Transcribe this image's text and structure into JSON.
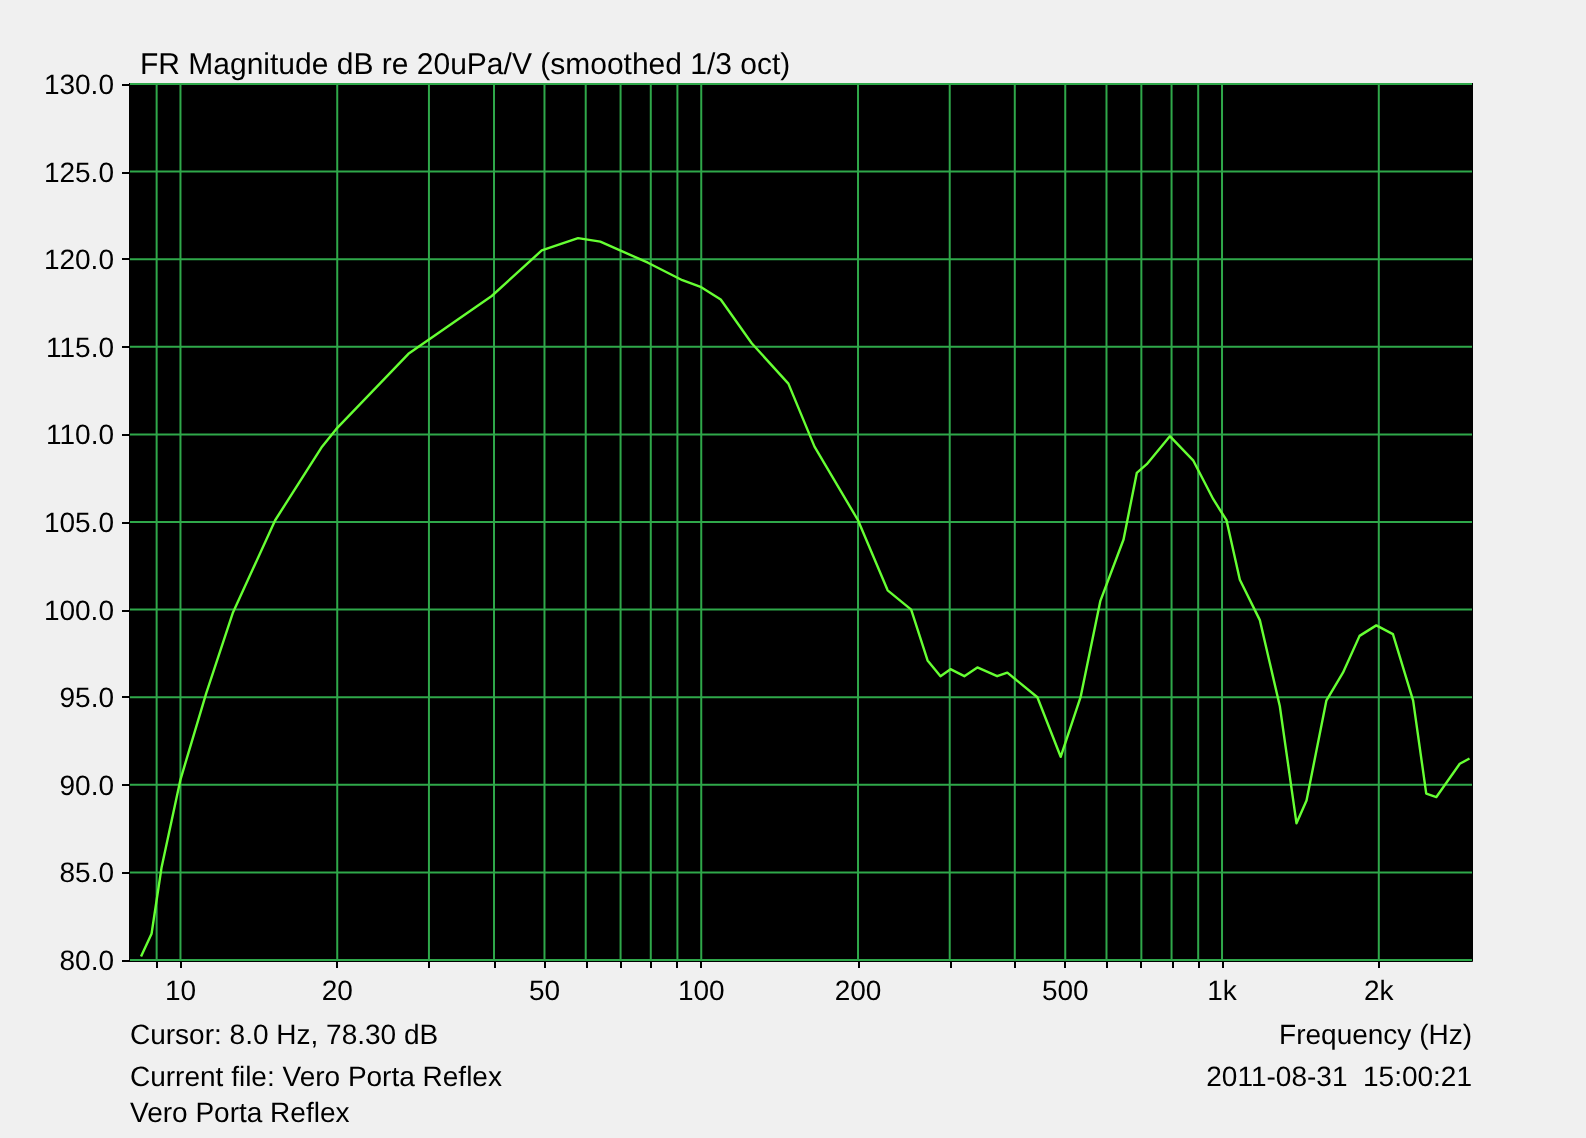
{
  "chart_data": {
    "type": "line",
    "title": "FR Magnitude dB re 20uPa/V (smoothed 1/3 oct)",
    "xlabel": "Frequency (Hz)",
    "annotations": [
      "Cursor: 8.0 Hz, 78.30 dB",
      "Current file: Vero Porta Reflex",
      "Vero Porta Reflex",
      "2011-08-31  15:00:21"
    ],
    "log": "x",
    "grid": true,
    "xlim": [
      8,
      3020
    ],
    "xticks": [
      {
        "value": 9,
        "label": null
      },
      {
        "value": 10,
        "label": "10"
      },
      {
        "value": 20,
        "label": "20"
      },
      {
        "value": 30,
        "label": null
      },
      {
        "value": 40,
        "label": null
      },
      {
        "value": 50,
        "label": "50"
      },
      {
        "value": 60,
        "label": null
      },
      {
        "value": 70,
        "label": null
      },
      {
        "value": 80,
        "label": null
      },
      {
        "value": 90,
        "label": null
      },
      {
        "value": 100,
        "label": "100"
      },
      {
        "value": 200,
        "label": "200"
      },
      {
        "value": 300,
        "label": null
      },
      {
        "value": 400,
        "label": null
      },
      {
        "value": 500,
        "label": "500"
      },
      {
        "value": 600,
        "label": null
      },
      {
        "value": 700,
        "label": null
      },
      {
        "value": 800,
        "label": null
      },
      {
        "value": 900,
        "label": null
      },
      {
        "value": 1000,
        "label": "1k"
      },
      {
        "value": 2000,
        "label": "2k"
      }
    ],
    "ylim": [
      80,
      130
    ],
    "yticks": [
      {
        "value": 80,
        "label": "80.0"
      },
      {
        "value": 85,
        "label": "85.0"
      },
      {
        "value": 90,
        "label": "90.0"
      },
      {
        "value": 95,
        "label": "95.0"
      },
      {
        "value": 100,
        "label": "100.0"
      },
      {
        "value": 105,
        "label": "105.0"
      },
      {
        "value": 110,
        "label": "110.0"
      },
      {
        "value": 115,
        "label": "115.0"
      },
      {
        "value": 120,
        "label": "120.0"
      },
      {
        "value": 125,
        "label": "125.0"
      },
      {
        "value": 130,
        "label": "130.0"
      }
    ],
    "series": [
      {
        "color": "#66ff33",
        "x": [
          8.4,
          8.8,
          9.2,
          10,
          11.2,
          12.6,
          15.2,
          18.7,
          19.9,
          27.4,
          39.6,
          49.4,
          58,
          64,
          79,
          92,
          100,
          109,
          125,
          147,
          165,
          200,
          228,
          253,
          272,
          288,
          301,
          320,
          339,
          370,
          387,
          442,
          490,
          535,
          584,
          647,
          686,
          717,
          794,
          881,
          962,
          1020,
          1082,
          1182,
          1291,
          1390,
          1453,
          1586,
          1707,
          1837,
          1978,
          2129,
          2328,
          2467,
          2580,
          2861,
          2987
        ],
        "values": [
          80.2,
          81.5,
          85.3,
          90.3,
          95.2,
          99.8,
          105.1,
          109.3,
          110.3,
          114.6,
          117.9,
          120.5,
          121.2,
          121.0,
          119.8,
          118.8,
          118.4,
          117.7,
          115.2,
          112.9,
          109.3,
          105.1,
          101.1,
          100.0,
          97.1,
          96.2,
          96.6,
          96.2,
          96.7,
          96.2,
          96.4,
          95.0,
          91.6,
          95.0,
          100.5,
          104.0,
          107.8,
          108.3,
          109.9,
          108.5,
          106.3,
          105.1,
          101.7,
          99.4,
          94.5,
          87.8,
          89.1,
          94.8,
          96.4,
          98.5,
          99.1,
          98.6,
          94.8,
          89.5,
          89.3,
          91.2,
          91.5
        ]
      }
    ]
  }
}
